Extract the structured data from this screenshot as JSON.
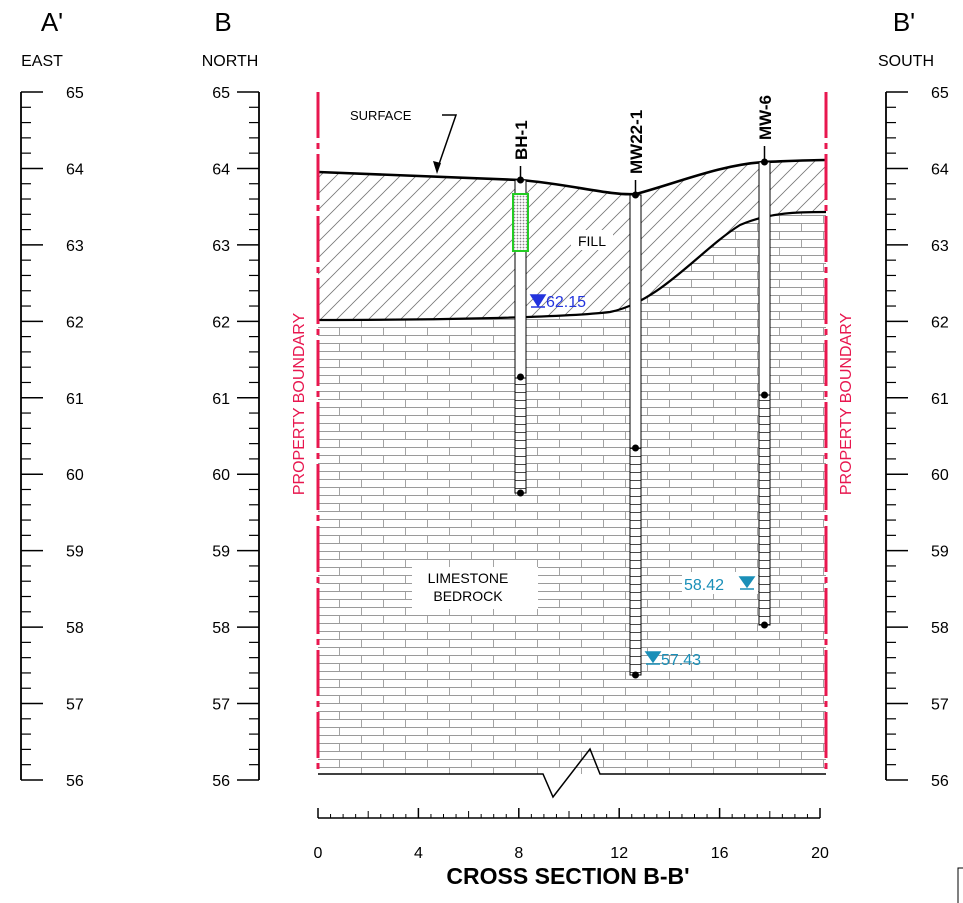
{
  "headers": {
    "left_letter": "A'",
    "left_direction": "EAST",
    "mid_letter": "B",
    "mid_direction": "NORTH",
    "right_letter": "B'",
    "right_direction": "SOUTH"
  },
  "elevation_ticks": [
    "65",
    "64",
    "63",
    "62",
    "61",
    "60",
    "59",
    "58",
    "57",
    "56"
  ],
  "labels": {
    "surface": "SURFACE",
    "fill": "FILL",
    "limestone_line1": "LIMESTONE",
    "limestone_line2": "BEDROCK",
    "property_boundary": "PROPERTY BOUNDARY"
  },
  "wells": [
    {
      "name": "BH-1",
      "water_level": "62.15",
      "water_color": "#2233dd"
    },
    {
      "name": "MW22-1",
      "water_level": "57.43",
      "water_color": "#1a8fb8"
    },
    {
      "name": "MW-6",
      "water_level": "58.42",
      "water_color": "#1a8fb8"
    }
  ],
  "scale_ticks": [
    "0",
    "4",
    "8",
    "12",
    "16",
    "20"
  ],
  "title": "CROSS SECTION B-B'",
  "colors": {
    "boundary": "#e8174f",
    "water_blue": "#2233dd",
    "water_cyan": "#1a8fb8",
    "sample_box": "#22cc22"
  }
}
